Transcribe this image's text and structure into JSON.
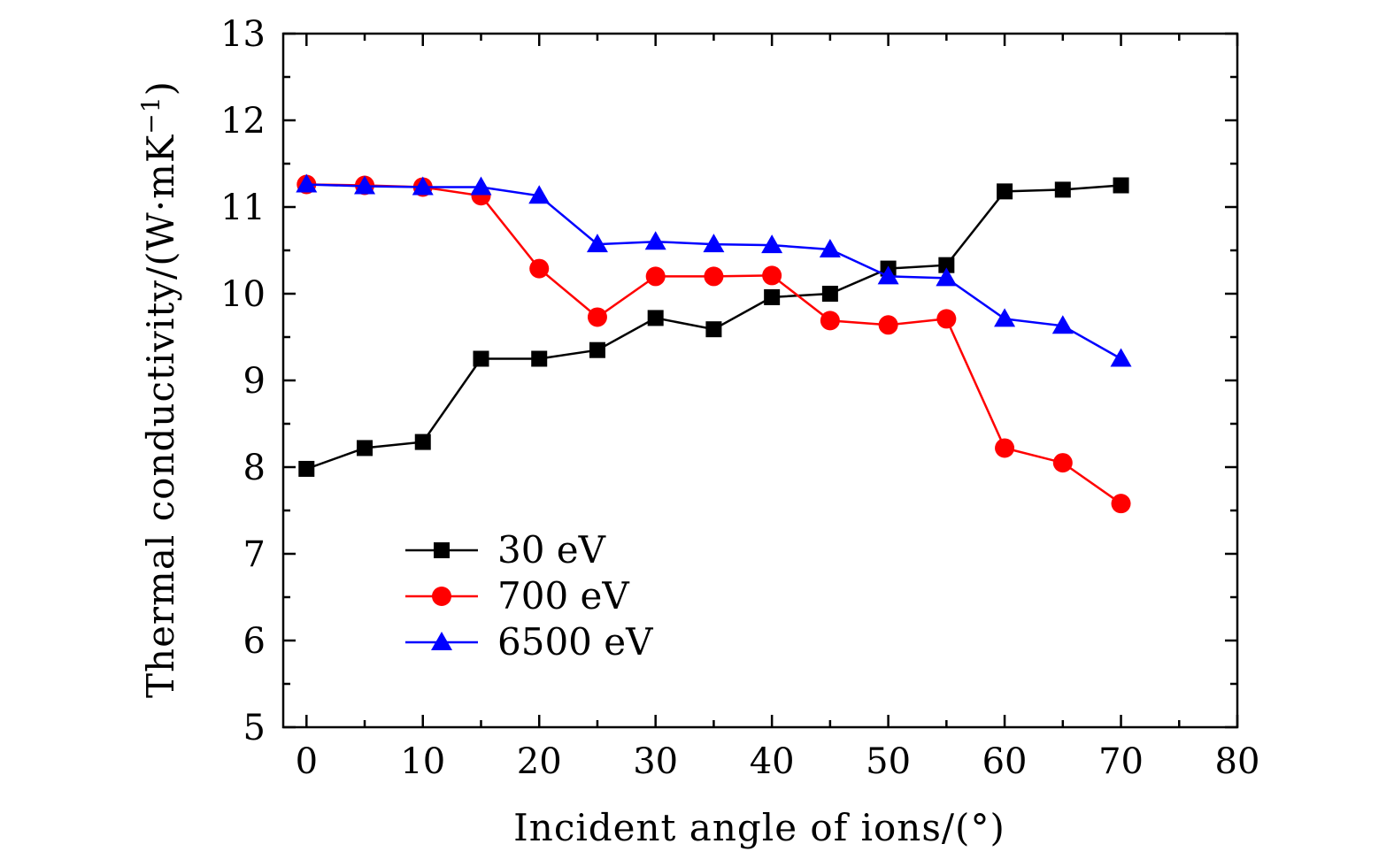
{
  "chart_data": {
    "type": "line",
    "title": "",
    "xlabel": "Incident angle of ions/(°)",
    "ylabel": "Thermal conductivity/(W·mK",
    "ylabel_exponent": "−1",
    "ylabel_close": ")",
    "xlim": [
      -2,
      80
    ],
    "ylim": [
      5,
      13
    ],
    "xticks": [
      0,
      10,
      20,
      30,
      40,
      50,
      60,
      70,
      80
    ],
    "yticks": [
      5,
      6,
      7,
      8,
      9,
      10,
      11,
      12,
      13
    ],
    "grid": false,
    "legend_position": "bottom-left",
    "x": [
      0,
      5,
      10,
      15,
      20,
      25,
      30,
      35,
      40,
      45,
      50,
      55,
      60,
      65,
      70
    ],
    "series": [
      {
        "name": "30 eV",
        "color": "#000000",
        "marker": "square",
        "values": [
          7.98,
          8.22,
          8.29,
          9.25,
          9.25,
          9.35,
          9.72,
          9.59,
          9.96,
          10.0,
          10.29,
          10.33,
          11.18,
          11.2,
          11.25
        ]
      },
      {
        "name": "700 eV",
        "color": "#ff0000",
        "marker": "circle",
        "values": [
          11.26,
          11.25,
          11.23,
          11.13,
          10.29,
          9.73,
          10.2,
          10.2,
          10.21,
          9.69,
          9.64,
          9.71,
          8.22,
          8.05,
          7.58
        ]
      },
      {
        "name": "6500 eV",
        "color": "#0000ff",
        "marker": "triangle",
        "values": [
          11.26,
          11.24,
          11.23,
          11.23,
          11.13,
          10.57,
          10.6,
          10.57,
          10.56,
          10.51,
          10.2,
          10.18,
          9.71,
          9.63,
          9.25
        ]
      }
    ]
  }
}
